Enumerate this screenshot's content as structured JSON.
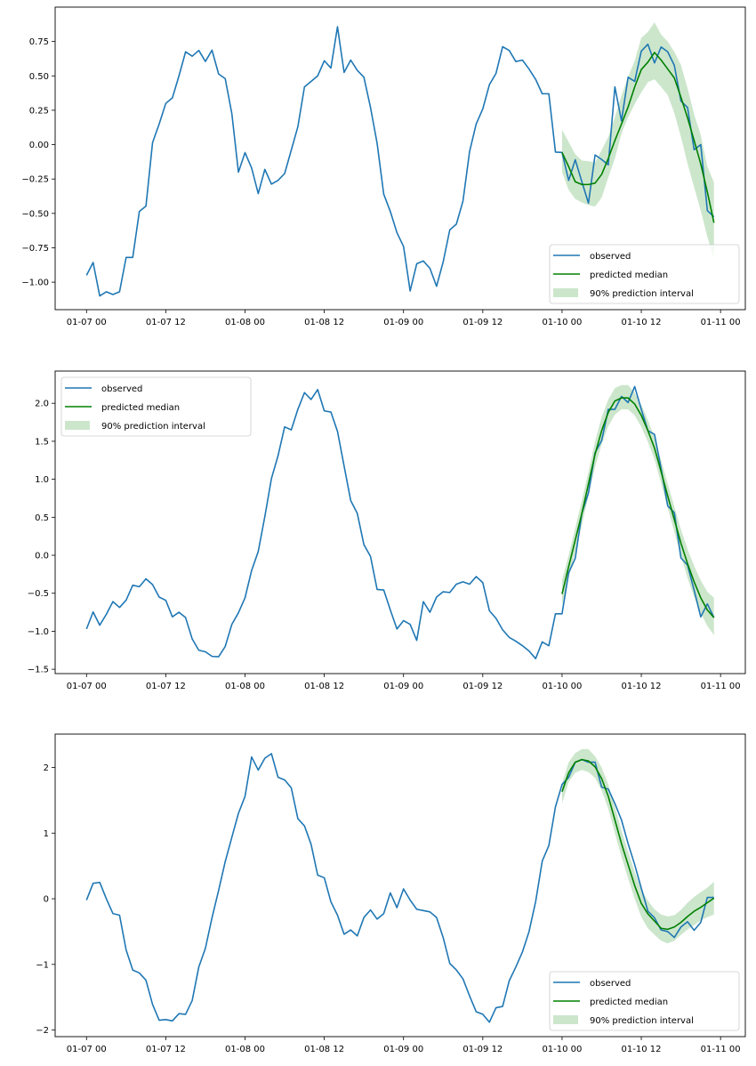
{
  "chart_data": [
    {
      "type": "line",
      "title": "",
      "xlabel": "",
      "ylabel": "",
      "x_start": "01-07 00",
      "x_step_hours": 1,
      "forecast_start": "01-10 00",
      "xlim_hours": [
        -4.75,
        99.75
      ],
      "ylim": [
        -1.2,
        1.0
      ],
      "grid": false,
      "legend_position": "lower-right",
      "xticks": [
        "01-07 00",
        "01-07 12",
        "01-08 00",
        "01-08 12",
        "01-09 00",
        "01-09 12",
        "01-10 00",
        "01-10 12",
        "01-11 00"
      ],
      "yticks": [
        0.75,
        0.5,
        0.25,
        0.0,
        -0.25,
        -0.5,
        -0.75,
        -1.0
      ],
      "ytick_labels": [
        "0.75",
        "0.50",
        "0.25",
        "0.00",
        "−0.25",
        "−0.50",
        "−0.75",
        "−1.00"
      ],
      "legend": {
        "observed": "observed",
        "median": "predicted median",
        "interval": "90% prediction interval"
      },
      "colors": {
        "observed": "#1f77b4",
        "median": "#008000",
        "interval": "#cce6cc"
      },
      "observed": [
        -0.95,
        -0.857,
        -1.1,
        -1.07,
        -1.09,
        -1.07,
        -0.82,
        -0.82,
        -0.486,
        -0.447,
        0.015,
        0.15,
        0.3,
        0.34,
        0.5,
        0.675,
        0.643,
        0.685,
        0.605,
        0.687,
        0.514,
        0.48,
        0.227,
        -0.2,
        -0.058,
        -0.17,
        -0.356,
        -0.18,
        -0.287,
        -0.26,
        -0.21,
        -0.04,
        0.13,
        0.42,
        0.46,
        0.5,
        0.61,
        0.557,
        0.857,
        0.525,
        0.615,
        0.54,
        0.49,
        0.27,
        0.01,
        -0.36,
        -0.486,
        -0.64,
        -0.74,
        -1.064,
        -0.866,
        -0.846,
        -0.9,
        -1.03,
        -0.853,
        -0.62,
        -0.578,
        -0.41,
        -0.05,
        0.15,
        0.26,
        0.436,
        0.518,
        0.712,
        0.685,
        0.604,
        0.615,
        0.55,
        0.475,
        0.37,
        0.37,
        -0.054,
        -0.057,
        -0.26,
        -0.11,
        -0.27,
        -0.425,
        -0.075,
        -0.108,
        -0.147,
        0.42,
        0.173,
        0.49,
        0.46,
        0.68,
        0.73,
        0.594,
        0.71,
        0.675,
        0.576,
        0.317,
        0.27,
        -0.037,
        0.0,
        -0.48,
        -0.525
      ],
      "median": [
        -0.057,
        -0.16,
        -0.27,
        -0.29,
        -0.29,
        -0.28,
        -0.216,
        -0.1,
        0.03,
        0.15,
        0.274,
        0.42,
        0.546,
        0.6,
        0.67,
        0.615,
        0.55,
        0.485,
        0.345,
        0.195,
        0.03,
        -0.14,
        -0.345,
        -0.568
      ],
      "lower": [
        -0.2,
        -0.33,
        -0.395,
        -0.42,
        -0.44,
        -0.45,
        -0.385,
        -0.24,
        -0.1,
        0.08,
        0.2,
        0.295,
        0.38,
        0.455,
        0.475,
        0.42,
        0.36,
        0.23,
        0.057,
        -0.137,
        -0.31,
        -0.48,
        -0.67,
        -0.83
      ],
      "upper": [
        0.108,
        0.02,
        -0.07,
        -0.115,
        -0.12,
        -0.13,
        -0.04,
        0.057,
        0.2,
        0.356,
        0.494,
        0.61,
        0.777,
        0.82,
        0.89,
        0.8,
        0.75,
        0.674,
        0.58,
        0.41,
        0.22,
        0.07,
        -0.16,
        -0.275
      ]
    },
    {
      "type": "line",
      "title": "",
      "xlabel": "",
      "ylabel": "",
      "x_start": "01-07 00",
      "x_step_hours": 1,
      "forecast_start": "01-10 00",
      "xlim_hours": [
        -4.75,
        99.75
      ],
      "ylim": [
        -1.557,
        2.424
      ],
      "grid": false,
      "legend_position": "upper-left",
      "xticks": [
        "01-07 00",
        "01-07 12",
        "01-08 00",
        "01-08 12",
        "01-09 00",
        "01-09 12",
        "01-10 00",
        "01-10 12",
        "01-11 00"
      ],
      "yticks": [
        2.0,
        1.5,
        1.0,
        0.5,
        0.0,
        -0.5,
        -1.0,
        -1.5
      ],
      "ytick_labels": [
        "2.0",
        "1.5",
        "1.0",
        "0.5",
        "0.0",
        "−0.5",
        "−1.0",
        "−1.5"
      ],
      "legend": {
        "observed": "observed",
        "median": "predicted median",
        "interval": "90% prediction interval"
      },
      "colors": {
        "observed": "#1f77b4",
        "median": "#008000",
        "interval": "#cce6cc"
      },
      "observed": [
        -0.97,
        -0.746,
        -0.92,
        -0.777,
        -0.61,
        -0.687,
        -0.59,
        -0.394,
        -0.414,
        -0.31,
        -0.386,
        -0.55,
        -0.593,
        -0.81,
        -0.75,
        -0.82,
        -1.1,
        -1.25,
        -1.27,
        -1.33,
        -1.335,
        -1.2,
        -0.91,
        -0.757,
        -0.56,
        -0.2,
        0.05,
        0.51,
        1.01,
        1.31,
        1.69,
        1.65,
        1.92,
        2.14,
        2.05,
        2.18,
        1.9,
        1.885,
        1.63,
        1.175,
        0.72,
        0.55,
        0.14,
        -0.016,
        -0.45,
        -0.457,
        -0.72,
        -0.97,
        -0.86,
        -0.91,
        -1.12,
        -0.61,
        -0.75,
        -0.55,
        -0.48,
        -0.49,
        -0.38,
        -0.35,
        -0.38,
        -0.28,
        -0.36,
        -0.73,
        -0.83,
        -0.98,
        -1.08,
        -1.13,
        -1.19,
        -1.26,
        -1.36,
        -1.14,
        -1.19,
        -0.77,
        -0.77,
        -0.23,
        -0.04,
        0.55,
        0.82,
        1.35,
        1.51,
        1.92,
        1.92,
        2.09,
        2.01,
        2.22,
        1.92,
        1.64,
        1.59,
        1.14,
        0.65,
        0.56,
        -0.035,
        -0.13,
        -0.46,
        -0.81,
        -0.64,
        -0.82
      ],
      "median": [
        -0.51,
        -0.15,
        0.2,
        0.55,
        0.94,
        1.33,
        1.64,
        1.88,
        2.03,
        2.07,
        2.07,
        1.99,
        1.84,
        1.64,
        1.41,
        1.1,
        0.78,
        0.47,
        0.16,
        -0.11,
        -0.35,
        -0.56,
        -0.72,
        -0.82
      ],
      "lower": [
        -0.66,
        -0.3,
        0.04,
        0.4,
        0.78,
        1.16,
        1.46,
        1.7,
        1.85,
        1.92,
        1.92,
        1.84,
        1.69,
        1.49,
        1.26,
        0.95,
        0.62,
        0.31,
        -0.01,
        -0.3,
        -0.55,
        -0.76,
        -0.93,
        -1.05
      ],
      "upper": [
        -0.33,
        0.0,
        0.36,
        0.72,
        1.1,
        1.5,
        1.82,
        2.05,
        2.2,
        2.24,
        2.24,
        2.14,
        1.98,
        1.78,
        1.55,
        1.25,
        0.94,
        0.64,
        0.34,
        0.08,
        -0.14,
        -0.33,
        -0.48,
        -0.56
      ]
    },
    {
      "type": "line",
      "title": "",
      "xlabel": "",
      "ylabel": "",
      "x_start": "01-07 00",
      "x_step_hours": 1,
      "forecast_start": "01-10 00",
      "xlim_hours": [
        -4.75,
        99.75
      ],
      "ylim": [
        -2.1,
        2.508
      ],
      "grid": false,
      "legend_position": "lower-right",
      "xticks": [
        "01-07 00",
        "01-07 12",
        "01-08 00",
        "01-08 12",
        "01-09 00",
        "01-09 12",
        "01-10 00",
        "01-10 12",
        "01-11 00"
      ],
      "yticks": [
        2,
        1,
        0,
        -1,
        -2
      ],
      "ytick_labels": [
        "2",
        "1",
        "0",
        "−1",
        "−2"
      ],
      "legend": {
        "observed": "observed",
        "median": "predicted median",
        "interval": "90% prediction interval"
      },
      "colors": {
        "observed": "#1f77b4",
        "median": "#008000",
        "interval": "#cce6cc"
      },
      "observed": [
        -0.02,
        0.235,
        0.25,
        0.0,
        -0.226,
        -0.25,
        -0.78,
        -1.085,
        -1.13,
        -1.24,
        -1.61,
        -1.85,
        -1.84,
        -1.86,
        -1.75,
        -1.76,
        -1.55,
        -1.04,
        -0.755,
        -0.29,
        0.127,
        0.565,
        0.935,
        1.3,
        1.56,
        2.16,
        1.96,
        2.14,
        2.21,
        1.85,
        1.81,
        1.69,
        1.22,
        1.11,
        0.83,
        0.36,
        0.32,
        -0.045,
        -0.25,
        -0.54,
        -0.475,
        -0.565,
        -0.285,
        -0.17,
        -0.31,
        -0.226,
        0.09,
        -0.135,
        0.15,
        -0.02,
        -0.16,
        -0.18,
        -0.2,
        -0.285,
        -0.59,
        -0.985,
        -1.085,
        -1.22,
        -1.48,
        -1.72,
        -1.76,
        -1.88,
        -1.66,
        -1.64,
        -1.25,
        -1.04,
        -0.81,
        -0.5,
        -0.045,
        0.574,
        0.81,
        1.4,
        1.74,
        1.85,
        2.08,
        2.12,
        2.08,
        2.08,
        1.7,
        1.67,
        1.45,
        1.2,
        0.84,
        0.52,
        0.16,
        -0.19,
        -0.29,
        -0.475,
        -0.5,
        -0.59,
        -0.43,
        -0.35,
        -0.48,
        -0.36,
        0.02,
        0.02
      ],
      "median": [
        1.63,
        1.92,
        2.08,
        2.12,
        2.1,
        2.01,
        1.83,
        1.56,
        1.2,
        0.84,
        0.52,
        0.2,
        -0.07,
        -0.23,
        -0.34,
        -0.45,
        -0.465,
        -0.43,
        -0.36,
        -0.27,
        -0.19,
        -0.13,
        -0.06,
        0.01
      ],
      "lower": [
        1.45,
        1.78,
        1.92,
        1.96,
        1.93,
        1.84,
        1.65,
        1.37,
        1.0,
        0.64,
        0.31,
        0.0,
        -0.28,
        -0.45,
        -0.55,
        -0.64,
        -0.68,
        -0.64,
        -0.55,
        -0.47,
        -0.4,
        -0.33,
        -0.28,
        -0.24
      ],
      "upper": [
        1.76,
        2.08,
        2.22,
        2.28,
        2.28,
        2.17,
        2.0,
        1.74,
        1.4,
        1.04,
        0.72,
        0.41,
        0.14,
        -0.03,
        -0.16,
        -0.24,
        -0.27,
        -0.25,
        -0.17,
        -0.06,
        0.03,
        0.1,
        0.17,
        0.26
      ]
    }
  ]
}
